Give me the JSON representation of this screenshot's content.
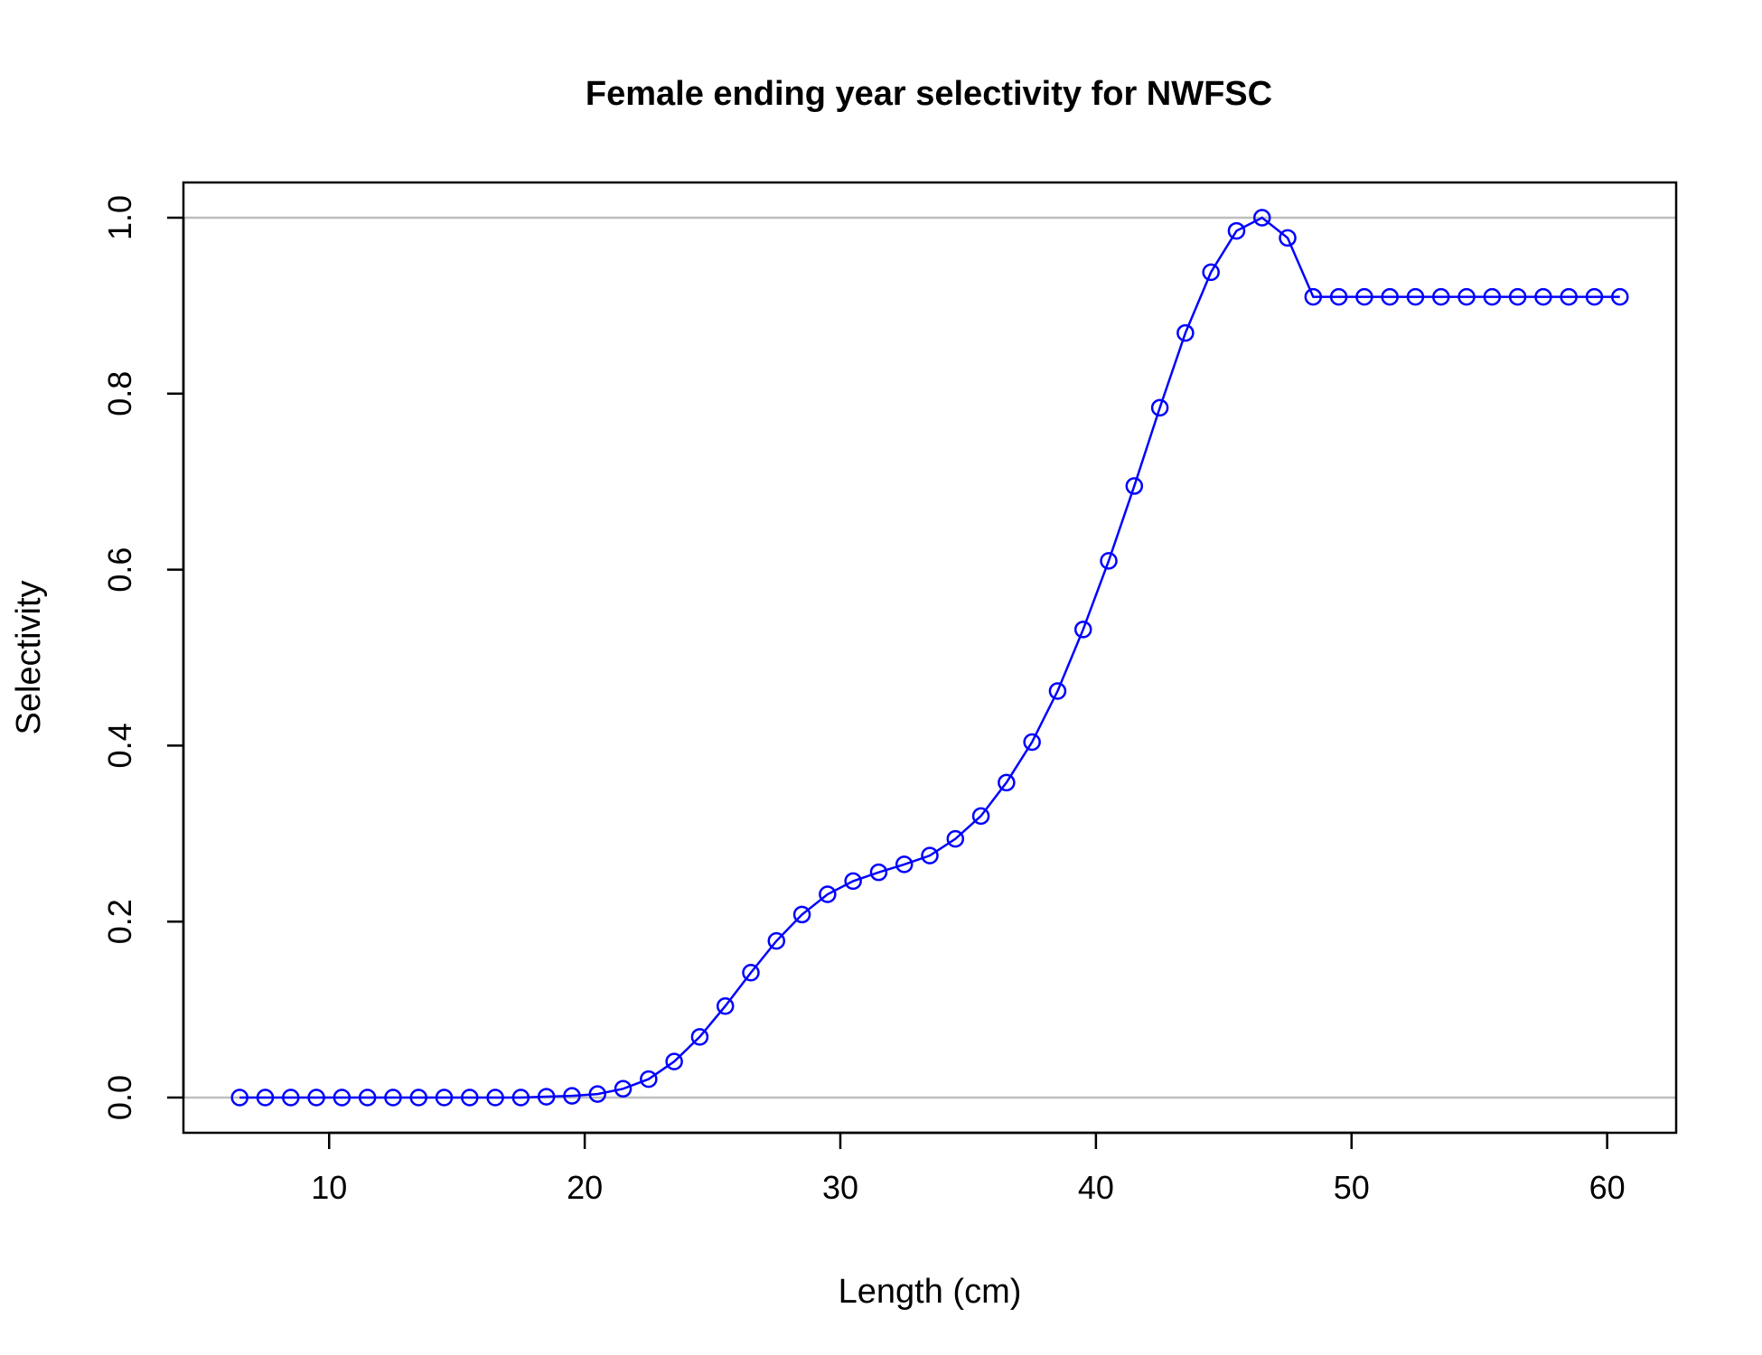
{
  "chart_data": {
    "type": "line",
    "title": "Female ending year selectivity for NWFSC",
    "xlabel": "Length (cm)",
    "ylabel": "Selectivity",
    "xlim": [
      4.3,
      62.7
    ],
    "ylim": [
      -0.04,
      1.04
    ],
    "xticks": [
      10,
      20,
      30,
      40,
      50,
      60
    ],
    "yticks": [
      0.0,
      0.2,
      0.4,
      0.6,
      0.8,
      1.0
    ],
    "xtick_labels": [
      "10",
      "20",
      "30",
      "40",
      "50",
      "60"
    ],
    "ytick_labels": [
      "0.0",
      "0.2",
      "0.4",
      "0.6",
      "0.8",
      "1.0"
    ],
    "reference_lines": [
      0,
      1
    ],
    "reference_line_color": "#bebebe",
    "series_color": "#0000ff",
    "marker": "open-circle",
    "x": [
      6.5,
      7.5,
      8.5,
      9.5,
      10.5,
      11.5,
      12.5,
      13.5,
      14.5,
      15.5,
      16.5,
      17.5,
      18.5,
      19.5,
      20.5,
      21.5,
      22.5,
      23.5,
      24.5,
      25.5,
      26.5,
      27.5,
      28.5,
      29.5,
      30.5,
      31.5,
      32.5,
      33.5,
      34.5,
      35.5,
      36.5,
      37.5,
      38.5,
      39.5,
      40.5,
      41.5,
      42.5,
      43.5,
      44.5,
      45.5,
      46.5,
      47.5,
      48.5,
      49.5,
      50.5,
      51.5,
      52.5,
      53.5,
      54.5,
      55.5,
      56.5,
      57.5,
      58.5,
      59.5,
      60.5
    ],
    "values": [
      0,
      0,
      0,
      0,
      0,
      0,
      0,
      0,
      0,
      0,
      0,
      0,
      0.001,
      0.002,
      0.004,
      0.01,
      0.021,
      0.041,
      0.069,
      0.104,
      0.142,
      0.178,
      0.208,
      0.231,
      0.246,
      0.256,
      0.265,
      0.275,
      0.294,
      0.32,
      0.358,
      0.404,
      0.462,
      0.532,
      0.61,
      0.695,
      0.784,
      0.869,
      0.938,
      0.985,
      1.0,
      0.977,
      0.91,
      0.91,
      0.91,
      0.91,
      0.91,
      0.91,
      0.91,
      0.91,
      0.91,
      0.91,
      0.91,
      0.91,
      0.91
    ]
  }
}
